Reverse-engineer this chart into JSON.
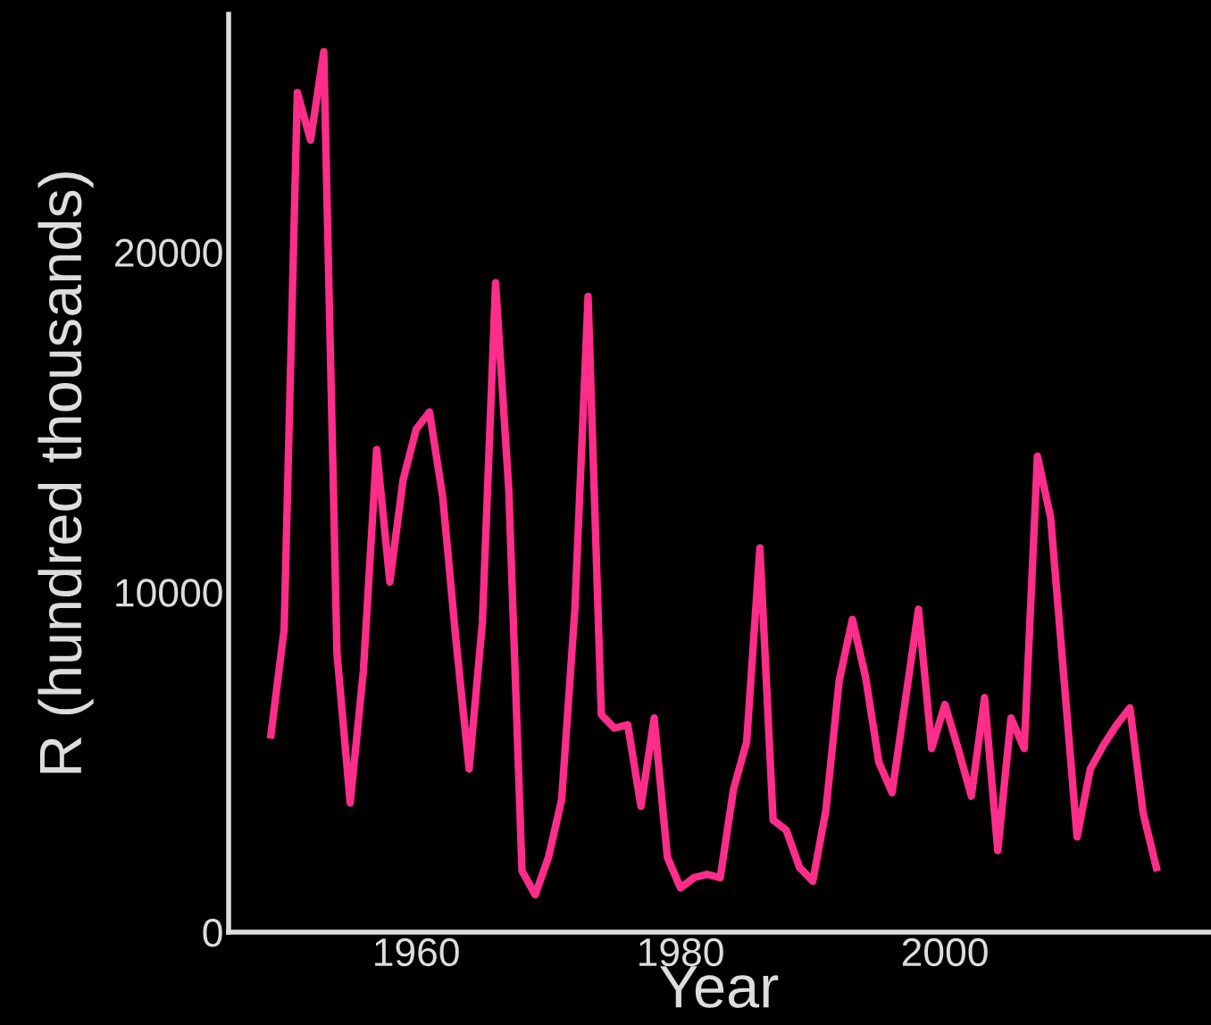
{
  "chart_data": {
    "type": "line",
    "xlabel": "Year",
    "ylabel": "R (hundred thousands)",
    "x": [
      1949,
      1950,
      1951,
      1952,
      1953,
      1954,
      1955,
      1956,
      1957,
      1958,
      1959,
      1960,
      1961,
      1962,
      1963,
      1964,
      1965,
      1966,
      1967,
      1968,
      1969,
      1970,
      1971,
      1972,
      1973,
      1974,
      1975,
      1976,
      1977,
      1978,
      1979,
      1980,
      1981,
      1982,
      1983,
      1984,
      1985,
      1986,
      1987,
      1988,
      1989,
      1990,
      1991,
      1992,
      1993,
      1994,
      1995,
      1996,
      1997,
      1998,
      1999,
      2000,
      2001,
      2002,
      2003,
      2004,
      2005,
      2006,
      2007,
      2008,
      2009,
      2010,
      2011,
      2012,
      2013,
      2014,
      2015,
      2016
    ],
    "series": [
      {
        "color": "#ff2d8a",
        "values": [
          5800,
          8900,
          24700,
          23300,
          25900,
          8200,
          3800,
          7700,
          14200,
          10300,
          13300,
          14800,
          15300,
          12800,
          8600,
          4800,
          9100,
          19100,
          13000,
          1800,
          1100,
          2200,
          3900,
          9500,
          18700,
          6400,
          6000,
          6100,
          3700,
          6300,
          2200,
          1300,
          1600,
          1700,
          1600,
          4200,
          5600,
          11300,
          3300,
          3000,
          1900,
          1500,
          3600,
          7400,
          9200,
          7500,
          5000,
          4100,
          6800,
          9500,
          5400,
          6700,
          5400,
          4000,
          6900,
          2400,
          6300,
          5400,
          14000,
          12200,
          7500,
          2800,
          4800,
          5500,
          6100,
          6600,
          3500,
          1900
        ]
      }
    ],
    "xlim": [
      1945.8,
      2020
    ],
    "ylim": [
      0,
      27000
    ],
    "xticks": [
      1960,
      1980,
      2000
    ],
    "yticks": [
      0,
      10000,
      20000
    ],
    "grid": false,
    "marker": "none",
    "line_style": "solid"
  }
}
